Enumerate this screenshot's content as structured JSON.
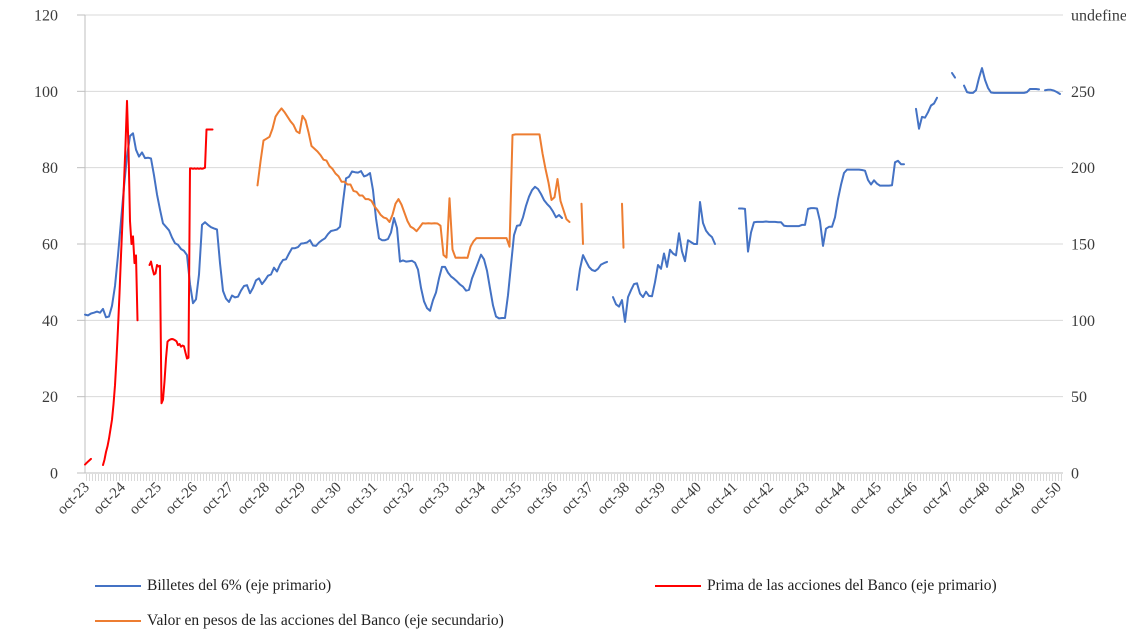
{
  "chart_data": {
    "type": "line",
    "title": "",
    "grid": true,
    "legend_position": "bottom",
    "x_axis": {
      "unit": "months since oct-23 (monthly series)",
      "tick_labels": [
        "oct-23",
        "oct-24",
        "oct-25",
        "oct-26",
        "oct-27",
        "oct-28",
        "oct-29",
        "oct-30",
        "oct-31",
        "oct-32",
        "oct-33",
        "oct-34",
        "oct-35",
        "oct-36",
        "oct-37",
        "oct-38",
        "oct-39",
        "oct-40",
        "oct-41",
        "oct-42",
        "oct-43",
        "oct-44",
        "oct-45",
        "oct-46",
        "oct-47",
        "oct-48",
        "oct-49",
        "oct-50"
      ],
      "label_interval_months": 12,
      "minor_tick_interval_months": 1
    },
    "y_axis_left": {
      "min": 0,
      "max": 120,
      "ticks": [
        0,
        20,
        40,
        60,
        80,
        100,
        120
      ]
    },
    "y_axis_right": {
      "min": 0,
      "max": 250,
      "ticks": [
        0,
        50,
        100,
        150,
        200,
        250
      ]
    },
    "series": [
      {
        "name": "Billetes del 6% (eje primario)",
        "color": "#4472C4",
        "axis": "left",
        "segments": [
          {
            "m0": 0,
            "dm": 1,
            "v": [
              41.5,
              41.3,
              41.8,
              42,
              42.3,
              42,
              43,
              40.8,
              41,
              43.8,
              49,
              57,
              66,
              75,
              83,
              88.3,
              89,
              84.7,
              82.9,
              84,
              82.5,
              82.6,
              82.4,
              78,
              73,
              69,
              65.4,
              64.5,
              63.6,
              61.7,
              60.2,
              59.8,
              58.7,
              58.2,
              57.1,
              49.5,
              44.5,
              45.5,
              52,
              65,
              65.7,
              65,
              64.4,
              64.1,
              63.8,
              55,
              47.7,
              45.7,
              44.8,
              46.5,
              46,
              46.2,
              47.8,
              49,
              49.2,
              47.1,
              48.5,
              50.5,
              51,
              49.5,
              50.5,
              51.7,
              52,
              53.8,
              52.8,
              54.6,
              55.8,
              56,
              57.5,
              58.9,
              58.9,
              59.2,
              60.1,
              60.2,
              60.4,
              61,
              59.6,
              59.5,
              60.4,
              61,
              61.5,
              62.6,
              63.4,
              63.6,
              63.8,
              64.5,
              71,
              77.2,
              77.6,
              79,
              78.8,
              78.7,
              79.1,
              77.7,
              78,
              78.6,
              74.1,
              66.7,
              61.5,
              61,
              61,
              61.3,
              63,
              66.8,
              64.2,
              55.4,
              55.7,
              55.4,
              55.5,
              55.6,
              55.1,
              53.3,
              48.5,
              45,
              43.2,
              42.5,
              45.3,
              47.3,
              51,
              54,
              54,
              52.5,
              51.5,
              50.9,
              50.2,
              49.4,
              48.8,
              47.8,
              48,
              51,
              53,
              55.1,
              57.2,
              56,
              53,
              48.4,
              43.9,
              41,
              40.5,
              40.6,
              40.6,
              46.6,
              54.5,
              62.3,
              64.8,
              64.9,
              67,
              70,
              72.4,
              74.1,
              75,
              74.4,
              73.1,
              71.5,
              70.5,
              69.7,
              68.5,
              67,
              67.6,
              66.8
            ]
          },
          {
            "m0": 164,
            "dm": 1,
            "v": [
              48,
              53.5,
              57.1,
              55.5,
              54,
              53.2,
              52.9,
              53.5,
              54.6,
              55,
              55.3
            ]
          },
          {
            "m0": 176,
            "dm": 1,
            "v": [
              46.1,
              44.2,
              43.6,
              45.3,
              39.6,
              46.1,
              47.9,
              49.5,
              49.7,
              47,
              46.1,
              47.5,
              46.4,
              46.3,
              50,
              54.5,
              53.5,
              57.5,
              54,
              58.5,
              57.5,
              57,
              62.8,
              58,
              55.5,
              61,
              60.5,
              60,
              60,
              71,
              65.5,
              63.5,
              62.5,
              61.8,
              60
            ]
          },
          {
            "m0": 218,
            "dm": 1,
            "v": [
              69.3,
              69.3,
              69.2,
              58,
              63,
              65.7,
              65.8,
              65.8,
              65.8,
              65.9,
              65.8,
              65.8,
              65.8,
              65.7,
              65.7,
              64.8,
              64.7,
              64.7,
              64.7,
              64.7,
              64.7,
              65,
              65,
              69.2,
              69.4,
              69.4,
              69.3,
              66,
              59.5,
              64,
              64.5,
              64.5,
              67,
              71.8,
              75.5,
              78.6,
              79.5,
              79.5,
              79.5,
              79.5,
              79.5,
              79.4,
              79.2,
              76.8,
              75.6,
              76.7,
              75.8,
              75.3,
              75.3,
              75.3,
              75.3,
              75.4,
              81.4,
              81.8,
              80.9,
              80.9
            ]
          },
          {
            "m0": 277,
            "dm": 1,
            "v": [
              95.4,
              90.2,
              93.3,
              93.1,
              94.5,
              96.3,
              96.8,
              98.3
            ]
          },
          {
            "m0": 289,
            "dm": 1,
            "v": [
              104.8,
              103.6
            ]
          },
          {
            "m0": 293,
            "dm": 1,
            "v": [
              101.5,
              99.8,
              99.6,
              99.6,
              100.3,
              103.5,
              106.1,
              103,
              100.9,
              99.7,
              99.6,
              99.6,
              99.6,
              99.6,
              99.6,
              99.6,
              99.6,
              99.6,
              99.6,
              99.6,
              99.6,
              99.8,
              100.6,
              100.6,
              100.6,
              100.5
            ]
          },
          {
            "m0": 320,
            "dm": 1,
            "v": [
              100.3,
              100.4,
              100.4,
              100.2,
              99.8,
              99.3
            ]
          }
        ]
      },
      {
        "name": "Prima de las acciones del Banco (eje primario)",
        "color": "#FF0000",
        "axis": "left",
        "segments": [
          {
            "m0": 0,
            "dm": 1,
            "v": [
              2.2,
              3,
              3.7
            ]
          },
          {
            "m0": 6,
            "dm": 0.5,
            "v": [
              2.1,
              3.5,
              5.5,
              7,
              9,
              11.5,
              14,
              18,
              23,
              30,
              38,
              47,
              57,
              66,
              76,
              86,
              97.5,
              85,
              66,
              60,
              62,
              55,
              57,
              40
            ]
          },
          {
            "m0": 21.5,
            "dm": 0.5,
            "v": [
              54.5,
              55.4,
              53.5,
              52,
              52.3,
              54.5,
              54.1,
              54.3,
              18.3,
              19.2,
              24,
              30,
              34.4,
              34.8,
              35,
              35.1,
              35,
              34.8,
              34.5,
              33.5,
              33.8,
              33.1,
              33.4,
              33.2,
              31.5,
              30,
              30.2,
              79.8,
              79.8,
              79.7,
              79.8,
              79.7,
              79.8,
              79.7,
              79.8,
              79.7,
              79.8,
              80,
              90,
              90,
              90,
              90,
              90
            ]
          }
        ]
      },
      {
        "name": "Valor en pesos de las acciones del Banco (eje secundario)",
        "color": "#ED7D31",
        "axis": "right",
        "segments": [
          {
            "m0": 57.5,
            "dm": 1,
            "v": [
              157,
              170,
              181.5,
              182.5,
              183.5,
              188,
              194.5,
              197,
              199,
              197,
              194.5,
              192,
              190,
              186.5,
              185.5,
              195,
              192.5,
              186,
              178.5,
              177,
              175.5,
              173.5,
              171,
              170.5,
              167.5,
              166,
              163.5,
              162,
              159,
              159,
              157.5,
              157.5,
              154,
              153.5,
              151.5,
              151.5,
              149.5,
              149.5,
              148.5,
              145.5,
              143.5,
              141,
              139.5,
              139,
              137,
              141,
              147,
              149.5,
              146.5,
              142,
              137.5,
              134.5,
              133.5,
              132,
              134,
              136.3,
              136.2,
              136.3,
              136.2,
              136.3,
              136.2,
              135,
              119,
              117.6,
              150,
              122,
              117.5,
              117.6,
              117.5,
              117.6,
              117.4,
              123.5,
              126.5,
              128.2,
              128.2,
              128.2,
              128.2,
              128.2,
              128.2,
              128.2,
              128.2,
              128.2,
              128.2,
              128.2,
              123.5,
              184.5,
              184.8,
              184.8,
              184.8,
              184.8,
              184.8,
              184.8,
              184.8,
              184.8,
              184.8,
              174.5,
              166,
              158.5,
              149,
              150.5,
              160.5,
              148.5,
              143.5,
              138.5,
              137
            ]
          },
          {
            "m0": 165.5,
            "dm": 0.5,
            "v": [
              147,
              125
            ]
          },
          {
            "m0": 179,
            "dm": 0.5,
            "v": [
              147,
              123
            ]
          }
        ]
      }
    ]
  },
  "legend": {
    "entries": [
      {
        "label": "Billetes del 6% (eje primario)"
      },
      {
        "label": "Prima de las acciones del Banco (eje primario)"
      },
      {
        "label": "Valor en pesos de las acciones del Banco (eje secundario)"
      }
    ]
  },
  "colors": {
    "gridline": "#d9d9d9",
    "axis_line": "#bfbfbf",
    "tick_comb": "#d9d9d9",
    "axis_text": "#3b3b3b",
    "legend_text": "#1f1f1f",
    "background": "#ffffff"
  }
}
